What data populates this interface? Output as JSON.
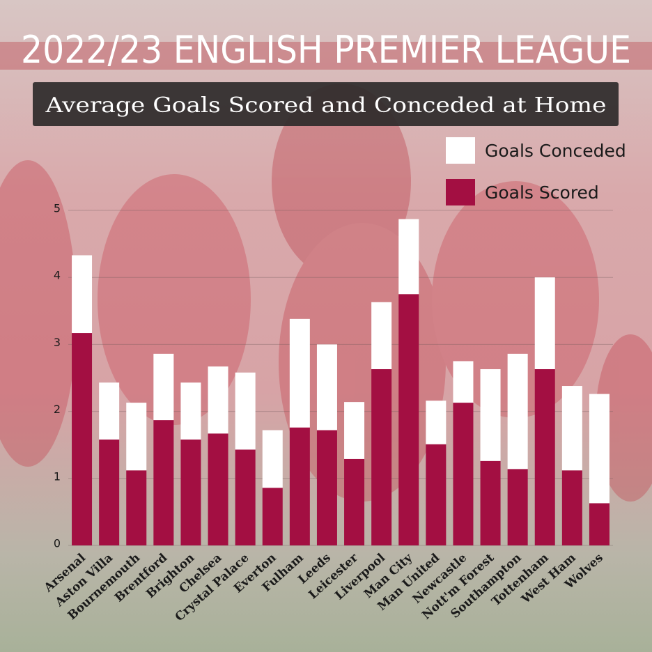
{
  "chart_data": {
    "type": "stacked_bar",
    "title": "2022/23 ENGLISH PREMIER LEAGUE",
    "subtitle": "Average Goals Scored and Conceded at Home",
    "categories": [
      "Arsenal",
      "Aston Villa",
      "Bournemouth",
      "Brentford",
      "Brighton",
      "Chelsea",
      "Crystal Palace",
      "Everton",
      "Fulham",
      "Leeds",
      "Leicester",
      "Liverpool",
      "Man City",
      "Man United",
      "Newcastle",
      "Nott'm Forest",
      "Southampton",
      "Tottenham",
      "West Ham",
      "Wolves"
    ],
    "series": [
      {
        "name": "Goals Scored",
        "color": "#a30f42",
        "values": [
          3.17,
          1.58,
          1.12,
          1.87,
          1.58,
          1.67,
          1.43,
          0.86,
          1.76,
          1.72,
          1.29,
          2.63,
          3.75,
          1.51,
          2.13,
          1.26,
          1.14,
          2.63,
          1.12,
          0.63
        ]
      },
      {
        "name": "Goals Conceded",
        "color": "#ffffff",
        "values": [
          1.16,
          0.85,
          1.01,
          0.99,
          0.85,
          1.0,
          1.15,
          0.86,
          1.62,
          1.28,
          0.85,
          1.0,
          1.12,
          0.65,
          0.62,
          1.37,
          1.72,
          1.37,
          1.26,
          1.63
        ]
      }
    ],
    "ylim": [
      0,
      5
    ],
    "yticks": [
      0,
      1,
      2,
      3,
      4,
      5
    ],
    "grid": true
  }
}
